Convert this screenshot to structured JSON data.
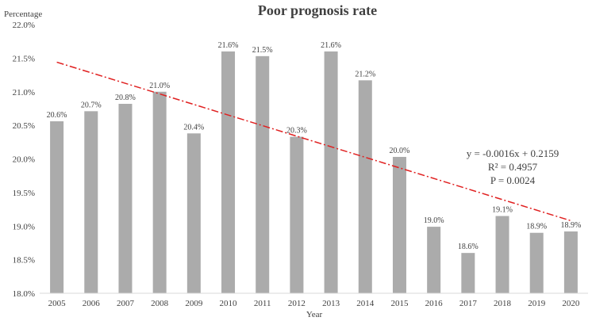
{
  "chart_data": {
    "type": "bar",
    "title": "Poor prognosis rate",
    "ylabel": "Percentage",
    "xlabel": "Year",
    "ylim": [
      18.0,
      22.0
    ],
    "yticks": [
      "18.0%",
      "18.5%",
      "19.0%",
      "19.5%",
      "20.0%",
      "20.5%",
      "21.0%",
      "21.5%",
      "22.0%"
    ],
    "categories": [
      "2005",
      "2006",
      "2007",
      "2008",
      "2009",
      "2010",
      "2011",
      "2012",
      "2013",
      "2014",
      "2015",
      "2016",
      "2017",
      "2018",
      "2019",
      "2020"
    ],
    "values": [
      20.56,
      20.71,
      20.82,
      21.0,
      20.38,
      21.6,
      21.53,
      20.33,
      21.6,
      21.17,
      20.03,
      18.99,
      18.6,
      19.15,
      18.9,
      18.92
    ],
    "data_labels": [
      "20.6%",
      "20.7%",
      "20.8%",
      "21.0%",
      "20.4%",
      "21.6%",
      "21.5%",
      "20.3%",
      "21.6%",
      "21.2%",
      "20.0%",
      "19.0%",
      "18.6%",
      "19.1%",
      "18.9%",
      "18.9%"
    ],
    "bar_color": "#ababab",
    "trendline": {
      "style": "dash-dot",
      "color": "#e02020",
      "start": 21.44,
      "end": 19.08
    },
    "annotations": [
      "y = -0.0016x + 0.2159",
      "R² = 0.4957",
      "P = 0.0024"
    ]
  }
}
